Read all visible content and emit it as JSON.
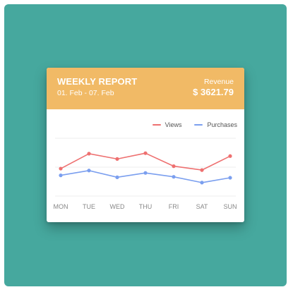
{
  "header": {
    "title": "WEEKLY REPORT",
    "date_range": "01. Feb - 07. Feb",
    "revenue_label": "Revenue",
    "revenue_value": "$ 3621.79"
  },
  "colors": {
    "background": "#46a89e",
    "header": "#f1ba66",
    "views": "#ee7070",
    "purchases": "#7b9fef",
    "grid": "#eeeeee"
  },
  "chart_data": {
    "type": "line",
    "categories": [
      "MON",
      "TUE",
      "WED",
      "THU",
      "FRI",
      "SAT",
      "SUN"
    ],
    "series": [
      {
        "name": "Views",
        "color": "#ee7070",
        "values": [
          57,
          88,
          77,
          89,
          62,
          54,
          83
        ]
      },
      {
        "name": "Purchases",
        "color": "#7b9fef",
        "values": [
          43,
          53,
          39,
          48,
          40,
          28,
          38
        ]
      }
    ],
    "ylim": [
      0,
      120
    ],
    "grid": true,
    "legend_position": "top-right",
    "title": "",
    "xlabel": "",
    "ylabel": ""
  }
}
